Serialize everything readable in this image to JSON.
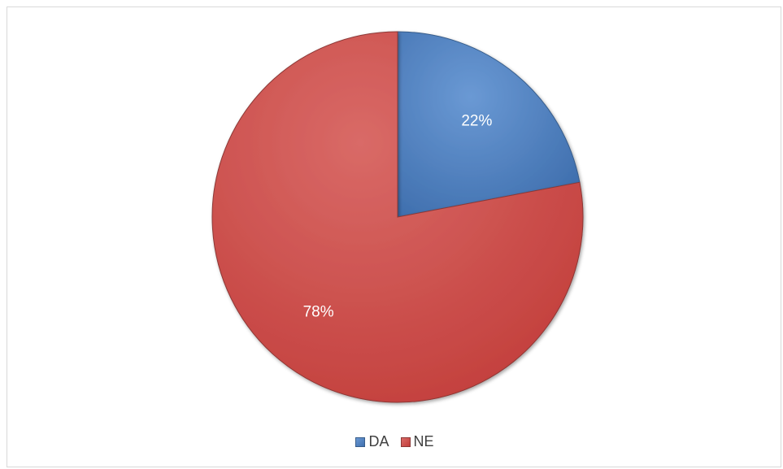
{
  "chart_data": {
    "type": "pie",
    "title": "",
    "slices": [
      {
        "label": "DA",
        "value": 22,
        "data_label": "22%",
        "color": "#4f81bd"
      },
      {
        "label": "NE",
        "value": 78,
        "data_label": "78%",
        "color": "#c0504d"
      }
    ],
    "legend_placement": "bottom"
  }
}
